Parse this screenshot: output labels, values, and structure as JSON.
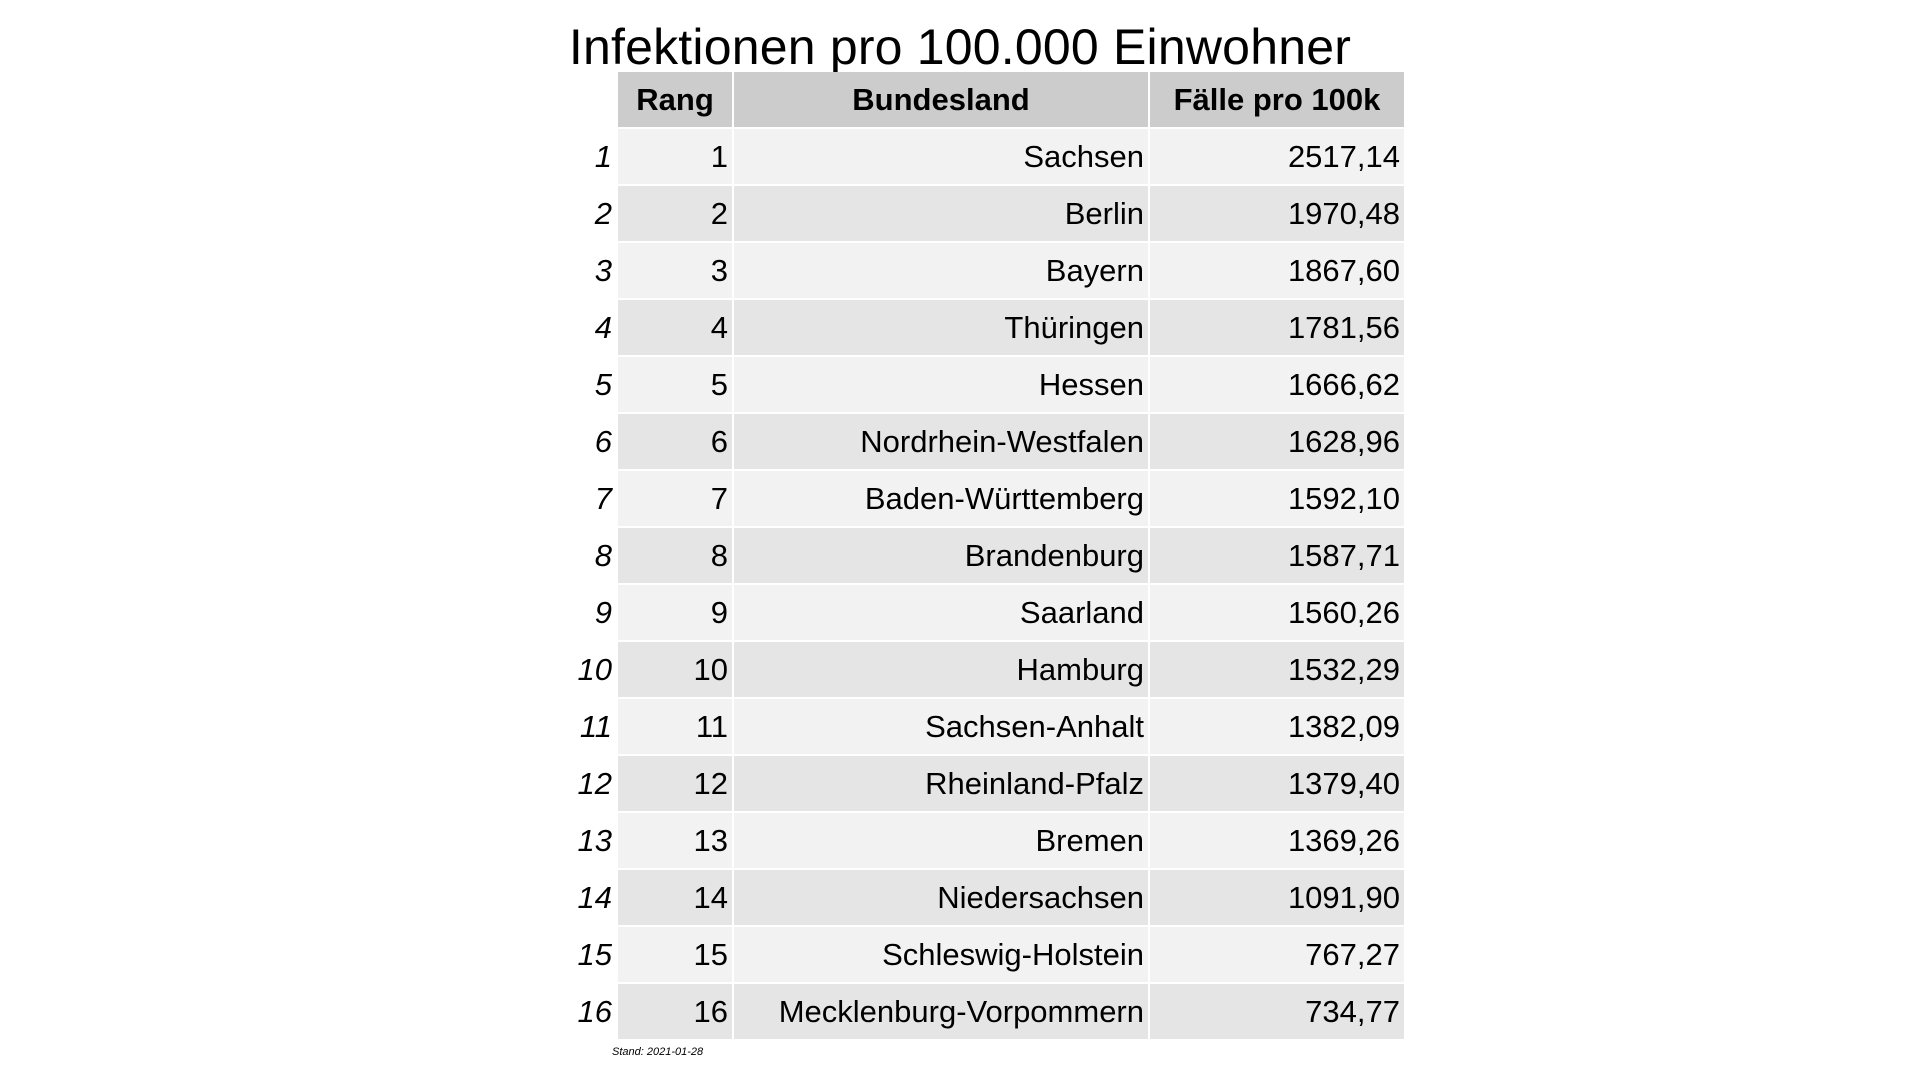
{
  "title": "Infektionen pro 100.000 Einwohner",
  "columns": {
    "rang": "Rang",
    "bundesland": "Bundesland",
    "faelle": "Fälle pro 100k"
  },
  "rows": [
    {
      "idx": "1",
      "rang": "1",
      "bundesland": "Sachsen",
      "faelle": "2517,14"
    },
    {
      "idx": "2",
      "rang": "2",
      "bundesland": "Berlin",
      "faelle": "1970,48"
    },
    {
      "idx": "3",
      "rang": "3",
      "bundesland": "Bayern",
      "faelle": "1867,60"
    },
    {
      "idx": "4",
      "rang": "4",
      "bundesland": "Thüringen",
      "faelle": "1781,56"
    },
    {
      "idx": "5",
      "rang": "5",
      "bundesland": "Hessen",
      "faelle": "1666,62"
    },
    {
      "idx": "6",
      "rang": "6",
      "bundesland": "Nordrhein-Westfalen",
      "faelle": "1628,96"
    },
    {
      "idx": "7",
      "rang": "7",
      "bundesland": "Baden-Württemberg",
      "faelle": "1592,10"
    },
    {
      "idx": "8",
      "rang": "8",
      "bundesland": "Brandenburg",
      "faelle": "1587,71"
    },
    {
      "idx": "9",
      "rang": "9",
      "bundesland": "Saarland",
      "faelle": "1560,26"
    },
    {
      "idx": "10",
      "rang": "10",
      "bundesland": "Hamburg",
      "faelle": "1532,29"
    },
    {
      "idx": "11",
      "rang": "11",
      "bundesland": "Sachsen-Anhalt",
      "faelle": "1382,09"
    },
    {
      "idx": "12",
      "rang": "12",
      "bundesland": "Rheinland-Pfalz",
      "faelle": "1379,40"
    },
    {
      "idx": "13",
      "rang": "13",
      "bundesland": "Bremen",
      "faelle": "1369,26"
    },
    {
      "idx": "14",
      "rang": "14",
      "bundesland": "Niedersachsen",
      "faelle": "1091,90"
    },
    {
      "idx": "15",
      "rang": "15",
      "bundesland": "Schleswig-Holstein",
      "faelle": "767,27"
    },
    {
      "idx": "16",
      "rang": "16",
      "bundesland": "Mecklenburg-Vorpommern",
      "faelle": "734,77"
    }
  ],
  "footnote": "Stand: 2021-01-28",
  "colors": {
    "header_bg": "#cccccc",
    "row_light": "#f2f2f2",
    "row_dark": "#e5e5e5"
  }
}
